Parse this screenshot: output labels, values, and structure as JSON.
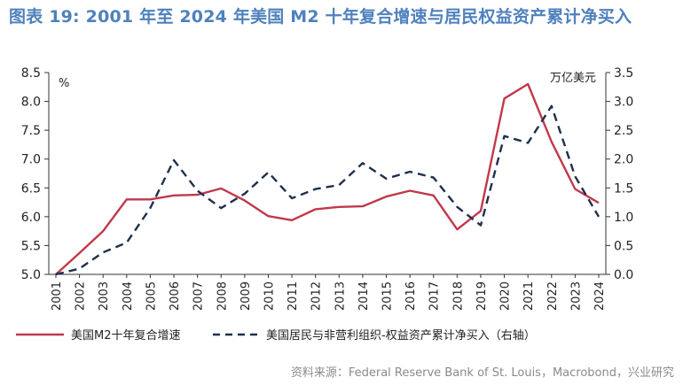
{
  "title": "图表 19: 2001 年至 2024 年美国 M2 十年复合增速与居民权益资产累计净买入",
  "source": "资料来源：Federal Reserve Bank of St. Louis，Macrobond，兴业研究",
  "colors": {
    "title": "#4f81bd",
    "m2": "#c0394b",
    "equity": "#1f2f4d",
    "axis": "#333333",
    "source": "#8a8a8a"
  },
  "chart_data": {
    "type": "line",
    "x": [
      "2001",
      "2002",
      "2003",
      "2004",
      "2005",
      "2006",
      "2007",
      "2008",
      "2009",
      "2010",
      "2011",
      "2012",
      "2013",
      "2014",
      "2015",
      "2016",
      "2017",
      "2018",
      "2019",
      "2020",
      "2021",
      "2022",
      "2023",
      "2024"
    ],
    "left_axis": {
      "unit": "%",
      "ylim": [
        5.0,
        8.5
      ],
      "ticks": [
        "5.0",
        "5.5",
        "6.0",
        "6.5",
        "7.0",
        "7.5",
        "8.0",
        "8.5"
      ]
    },
    "right_axis": {
      "unit": "万亿美元",
      "ylim": [
        0.0,
        3.5
      ],
      "ticks": [
        "0.0",
        "0.5",
        "1.0",
        "1.5",
        "2.0",
        "2.5",
        "3.0",
        "3.5"
      ]
    },
    "series": [
      {
        "name": "美国M2十年复合增速",
        "axis": "left",
        "style": "solid",
        "values": [
          5.0,
          5.37,
          5.75,
          6.3,
          6.3,
          6.37,
          6.38,
          6.49,
          6.28,
          6.01,
          5.94,
          6.13,
          6.17,
          6.18,
          6.35,
          6.45,
          6.37,
          5.78,
          6.1,
          8.05,
          8.3,
          7.3,
          6.48,
          6.24
        ]
      },
      {
        "name": "美国居民与非营利组织-权益资产累计净买入（右轴）",
        "axis": "right",
        "style": "dashed",
        "values": [
          0.0,
          0.1,
          0.38,
          0.55,
          1.15,
          1.98,
          1.45,
          1.15,
          1.4,
          1.77,
          1.32,
          1.48,
          1.55,
          1.93,
          1.66,
          1.78,
          1.68,
          1.17,
          0.85,
          2.4,
          2.28,
          2.92,
          1.7,
          1.0
        ]
      }
    ]
  }
}
